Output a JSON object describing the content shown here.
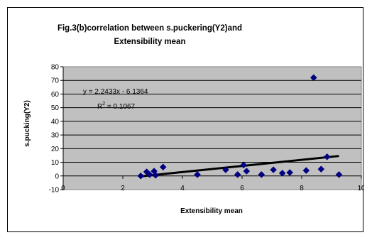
{
  "chart_data": {
    "type": "scatter",
    "title": "Fig.3(b)correlation between s.puckering(Y2)and Extensibility mean",
    "title_lines": [
      "Fig.3(b)correlation between s.puckering(Y2)and",
      "Extensibility mean"
    ],
    "xlabel": "Extensibility mean",
    "ylabel": "s.pucking(Y2)",
    "xlim": [
      0,
      10
    ],
    "ylim": [
      -10,
      80
    ],
    "x_ticks": [
      0,
      2,
      4,
      6,
      8,
      10
    ],
    "y_ticks": [
      -10,
      0,
      10,
      20,
      30,
      40,
      50,
      60,
      70,
      80
    ],
    "plot_background": "#c0c0c0",
    "marker_color": "#000080",
    "grid": "horizontal",
    "series": [
      {
        "points": [
          {
            "x": 2.6,
            "y": 0
          },
          {
            "x": 2.8,
            "y": 3
          },
          {
            "x": 2.9,
            "y": 1
          },
          {
            "x": 3.05,
            "y": 3.5
          },
          {
            "x": 3.1,
            "y": 0.5
          },
          {
            "x": 3.35,
            "y": 6.5
          },
          {
            "x": 4.5,
            "y": 1
          },
          {
            "x": 5.45,
            "y": 4.5
          },
          {
            "x": 5.85,
            "y": 1
          },
          {
            "x": 6.05,
            "y": 8
          },
          {
            "x": 6.15,
            "y": 3.5
          },
          {
            "x": 6.65,
            "y": 1
          },
          {
            "x": 7.05,
            "y": 4.5
          },
          {
            "x": 7.35,
            "y": 2
          },
          {
            "x": 7.6,
            "y": 2.5
          },
          {
            "x": 8.15,
            "y": 4
          },
          {
            "x": 8.4,
            "y": 72
          },
          {
            "x": 8.65,
            "y": 5
          },
          {
            "x": 8.85,
            "y": 14
          },
          {
            "x": 9.25,
            "y": 1
          }
        ]
      }
    ],
    "trendline": {
      "slope": 2.2433,
      "intercept": -6.1364,
      "x_range": [
        2.6,
        9.25
      ],
      "equation_text": "y = 2.2433x - 6.1364",
      "r2_label": "R",
      "r2_sup": "2",
      "r2_value": " = 0.1067"
    }
  }
}
